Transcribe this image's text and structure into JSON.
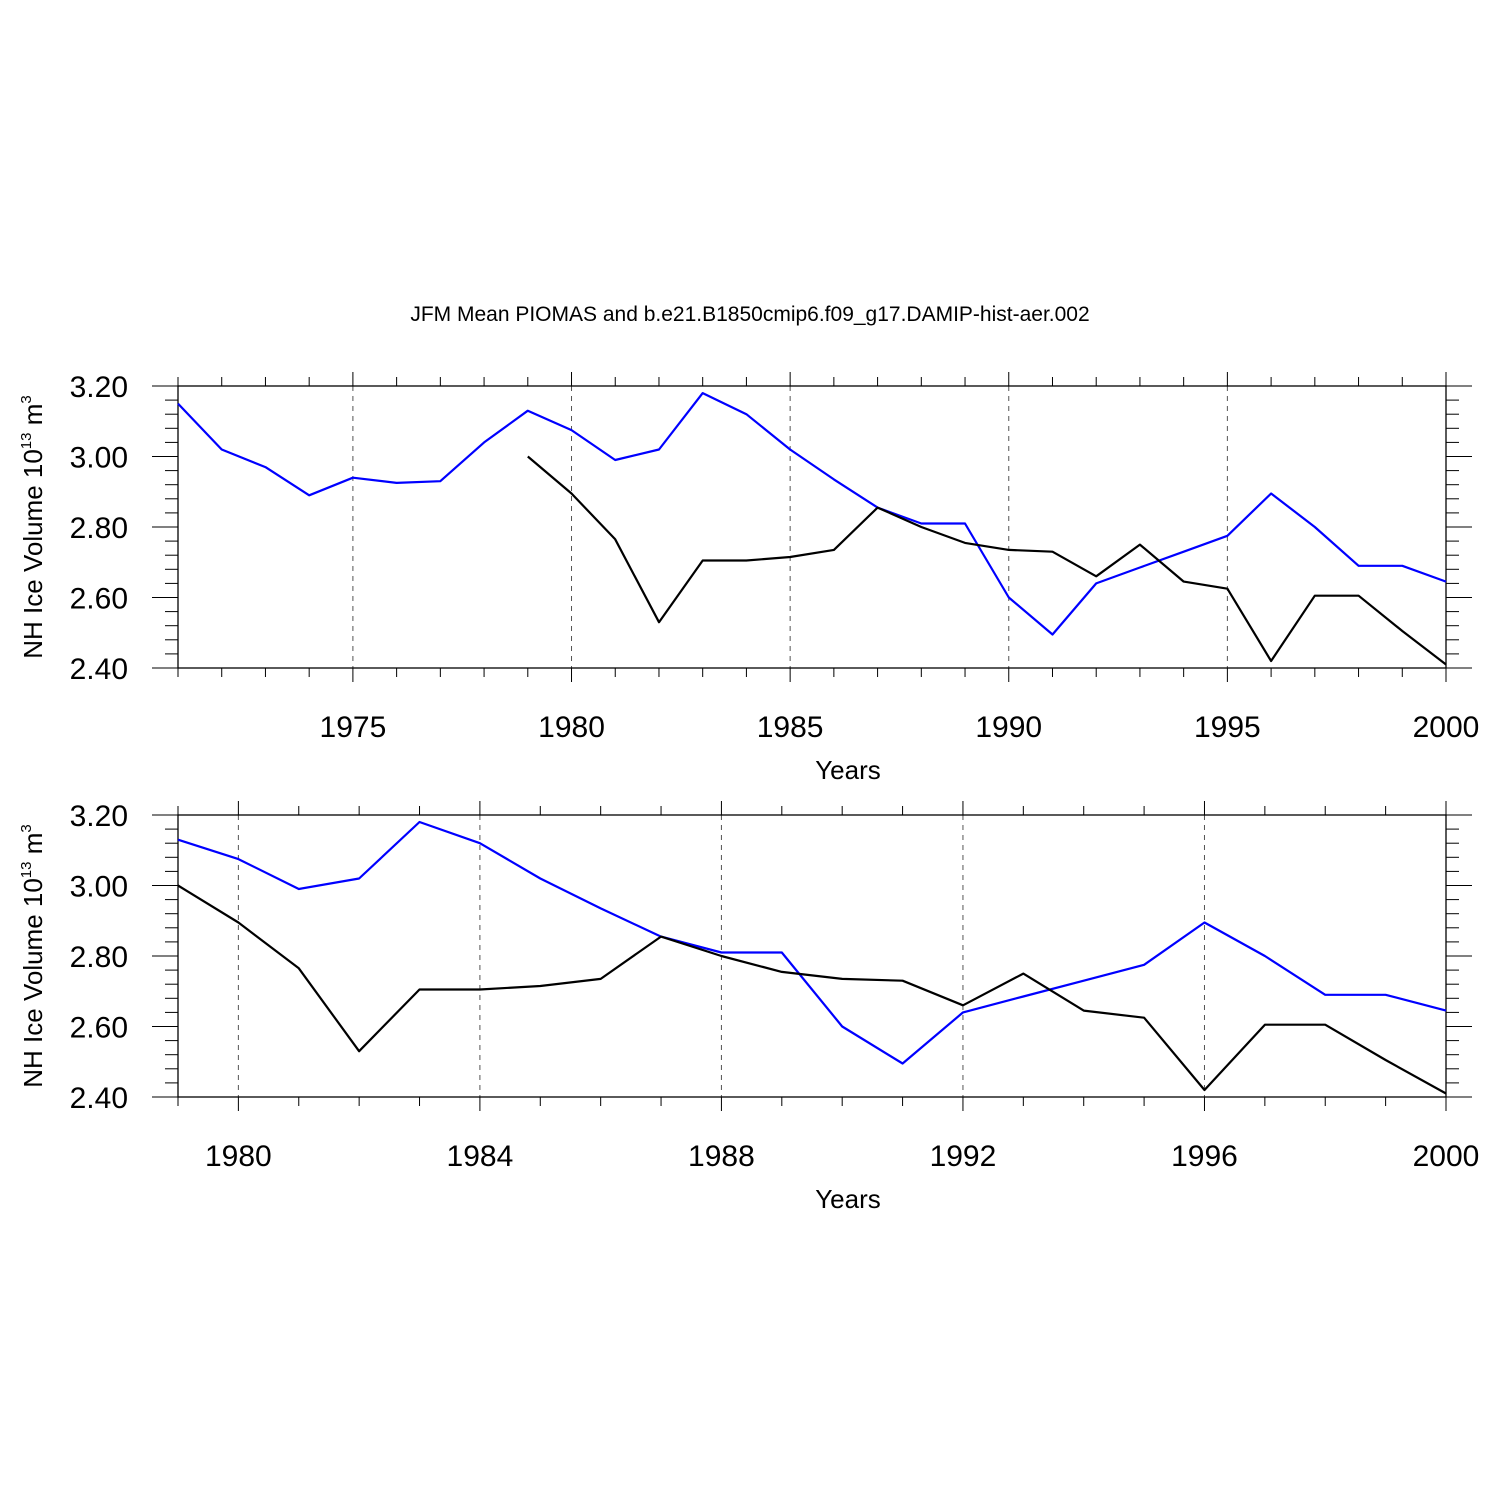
{
  "figure": {
    "title": "JFM Mean PIOMAS and b.e21.B1850cmip6.f09_g17.DAMIP-hist-aer.002"
  },
  "chart_data": [
    {
      "type": "line",
      "xlabel": "Years",
      "ylabel": {
        "text": "NH Ice Volume 10",
        "sup": "13",
        "unit": " m",
        "unit_sup": "3"
      },
      "xlim": [
        1971,
        2000
      ],
      "ylim": [
        2.4,
        3.2
      ],
      "xticks_major": [
        1975,
        1980,
        1985,
        1990,
        1995,
        2000
      ],
      "yticks_major": [
        2.4,
        2.6,
        2.8,
        3.0,
        3.2
      ],
      "ytick_labels": [
        "2.40",
        "2.60",
        "2.80",
        "3.00",
        "3.20"
      ],
      "grid": "vertical dashed at major x ticks",
      "series": [
        {
          "color": "#0000ff",
          "x": [
            1971,
            1972,
            1973,
            1974,
            1975,
            1976,
            1977,
            1978,
            1979,
            1980,
            1981,
            1982,
            1983,
            1984,
            1985,
            1986,
            1987,
            1988,
            1989,
            1990,
            1991,
            1992,
            1993,
            1994,
            1995,
            1996,
            1997,
            1998,
            1999,
            2000
          ],
          "values": [
            3.15,
            3.02,
            2.97,
            2.89,
            2.94,
            2.925,
            2.93,
            3.04,
            3.13,
            3.075,
            2.99,
            3.02,
            3.18,
            3.12,
            3.02,
            2.935,
            2.855,
            2.81,
            2.81,
            2.6,
            2.495,
            2.64,
            2.685,
            2.73,
            2.775,
            2.895,
            2.8,
            2.69,
            2.69,
            2.645
          ]
        },
        {
          "color": "#000000",
          "x": [
            1979,
            1980,
            1981,
            1982,
            1983,
            1984,
            1985,
            1986,
            1987,
            1988,
            1989,
            1990,
            1991,
            1992,
            1993,
            1994,
            1995,
            1996,
            1997,
            1998,
            1999,
            2000
          ],
          "values": [
            3.0,
            2.895,
            2.765,
            2.53,
            2.705,
            2.705,
            2.715,
            2.735,
            2.855,
            2.8,
            2.755,
            2.735,
            2.73,
            2.66,
            2.75,
            2.645,
            2.625,
            2.42,
            2.605,
            2.605,
            2.505,
            2.41
          ]
        }
      ]
    },
    {
      "type": "line",
      "xlabel": "Years",
      "ylabel": {
        "text": "NH Ice Volume 10",
        "sup": "13",
        "unit": " m",
        "unit_sup": "3"
      },
      "xlim": [
        1979,
        2000
      ],
      "ylim": [
        2.4,
        3.2
      ],
      "xticks_major": [
        1980,
        1984,
        1988,
        1992,
        1996,
        2000
      ],
      "yticks_major": [
        2.4,
        2.6,
        2.8,
        3.0,
        3.2
      ],
      "ytick_labels": [
        "2.40",
        "2.60",
        "2.80",
        "3.00",
        "3.20"
      ],
      "grid": "vertical dashed at major x ticks",
      "series": [
        {
          "color": "#0000ff",
          "x": [
            1979,
            1980,
            1981,
            1982,
            1983,
            1984,
            1985,
            1986,
            1987,
            1988,
            1989,
            1990,
            1991,
            1992,
            1993,
            1994,
            1995,
            1996,
            1997,
            1998,
            1999,
            2000
          ],
          "values": [
            3.13,
            3.075,
            2.99,
            3.02,
            3.18,
            3.12,
            3.02,
            2.935,
            2.855,
            2.81,
            2.81,
            2.6,
            2.495,
            2.64,
            2.685,
            2.73,
            2.775,
            2.895,
            2.8,
            2.69,
            2.69,
            2.645
          ]
        },
        {
          "color": "#000000",
          "x": [
            1979,
            1980,
            1981,
            1982,
            1983,
            1984,
            1985,
            1986,
            1987,
            1988,
            1989,
            1990,
            1991,
            1992,
            1993,
            1994,
            1995,
            1996,
            1997,
            1998,
            1999,
            2000
          ],
          "values": [
            3.0,
            2.895,
            2.765,
            2.53,
            2.705,
            2.705,
            2.715,
            2.735,
            2.855,
            2.8,
            2.755,
            2.735,
            2.73,
            2.66,
            2.75,
            2.645,
            2.625,
            2.42,
            2.605,
            2.605,
            2.505,
            2.41
          ]
        }
      ]
    }
  ]
}
